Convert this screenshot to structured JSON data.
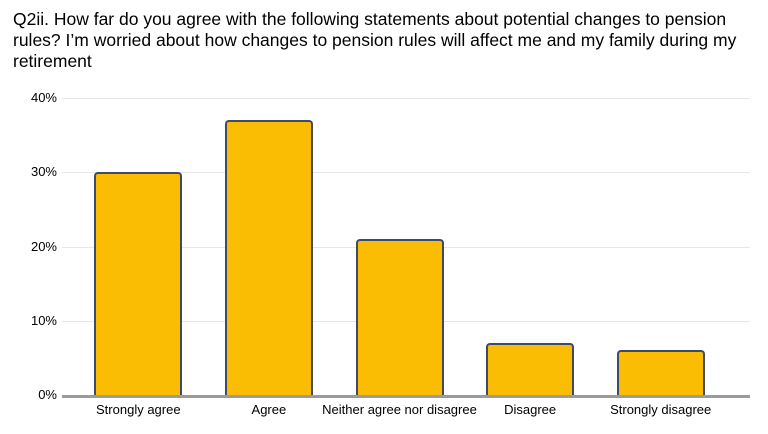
{
  "chart_data": {
    "type": "bar",
    "title": "Q2ii. How far do you agree with the following statements about potential changes to pension rules? I’m worried about how changes to pension rules will affect me and my family during my retirement",
    "categories": [
      "Strongly agree",
      "Agree",
      "Neither agree nor disagree",
      "Disagree",
      "Strongly disagree"
    ],
    "values": [
      30,
      37,
      21,
      7,
      6
    ],
    "xlabel": "",
    "ylabel": "",
    "ylim": [
      0,
      40
    ],
    "yticks": [
      0,
      10,
      20,
      30,
      40
    ],
    "ytick_labels": [
      "0%",
      "10%",
      "20%",
      "30%",
      "40%"
    ],
    "grid": true,
    "legend": "none",
    "colors": {
      "bar_fill": "#FBBC04",
      "bar_border": "#3D4A6B",
      "gridline": "#E6E6E6",
      "axis_line": "#9B9B9B",
      "text": "#000000",
      "background": "#FFFFFF"
    }
  }
}
